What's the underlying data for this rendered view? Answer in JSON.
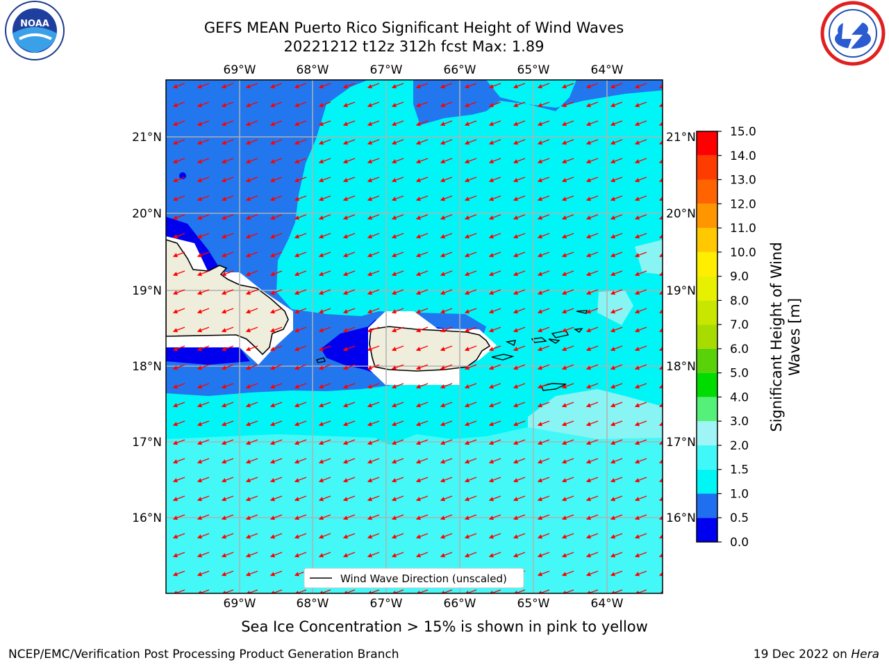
{
  "title_line1": "GEFS MEAN Puerto Rico Significant Height of Wind Waves",
  "title_line2": "20221212 t12z 312h fcst   Max: 1.89",
  "longitude_labels": [
    "69°W",
    "68°W",
    "67°W",
    "66°W",
    "65°W",
    "64°W"
  ],
  "latitude_labels": [
    "21°N",
    "20°N",
    "19°N",
    "18°N",
    "17°N",
    "16°N"
  ],
  "legend_label": "Wind Wave Direction (unscaled)",
  "colorbar": {
    "label_line1": "Significant Height of Wind",
    "label_line2": "Waves [m]",
    "ticks": [
      "0.0",
      "0.5",
      "1.0",
      "1.5",
      "2.0",
      "3.0",
      "4.0",
      "5.0",
      "6.0",
      "7.0",
      "8.0",
      "9.0",
      "10.0",
      "11.0",
      "12.0",
      "13.0",
      "14.0",
      "15.0"
    ],
    "colors": [
      "#0000f0",
      "#1f6ff0",
      "#00f5f5",
      "#40f8f8",
      "#9ff5f5",
      "#55f07a",
      "#00dc00",
      "#5ad20a",
      "#a8dc00",
      "#c8e600",
      "#e6f000",
      "#ffee00",
      "#ffc800",
      "#ff9600",
      "#ff6400",
      "#ff3c00",
      "#ff0000"
    ]
  },
  "map_colors": {
    "land": "#efeddc",
    "very_low": "#0000ee",
    "low": "#2277ee",
    "mid": "#00f6f6",
    "high": "#44f8f8",
    "higher": "#88f4f4",
    "arrow": "#ff0000"
  },
  "subtitle": "Sea Ice Concentration > 15% is shown in pink to yellow",
  "footer_left": "NCEP/EMC/Verification Post Processing Product Generation Branch",
  "footer_date": "19 Dec 2022 on ",
  "footer_host": "Hera",
  "logos": {
    "noaa_text": "NOAA"
  }
}
